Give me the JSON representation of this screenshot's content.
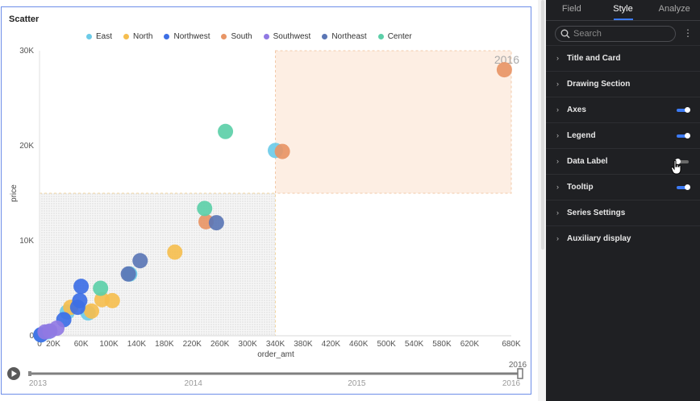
{
  "chart": {
    "title": "Scatter"
  },
  "colors": {
    "East": "#6ccbe8",
    "North": "#f5be4f",
    "Northwest": "#3d6fe5",
    "South": "#e89566",
    "Southwest": "#9079e3",
    "Northeast": "#5b76b5",
    "Center": "#5ccfa8"
  },
  "chart_data": {
    "type": "scatter",
    "title": "Scatter",
    "xlabel": "order_amt",
    "ylabel": "price",
    "xlim": [
      0,
      680000
    ],
    "ylim": [
      0,
      30000
    ],
    "x_ticks": [
      "0",
      "20K",
      "60K",
      "100K",
      "140K",
      "180K",
      "220K",
      "260K",
      "300K",
      "340K",
      "380K",
      "420K",
      "460K",
      "500K",
      "540K",
      "580K",
      "620K",
      "680K"
    ],
    "x_tick_values": [
      0,
      20000,
      60000,
      100000,
      140000,
      180000,
      220000,
      260000,
      300000,
      340000,
      380000,
      420000,
      460000,
      500000,
      540000,
      580000,
      620000,
      680000
    ],
    "y_ticks": [
      "0",
      "10K",
      "20K",
      "30K"
    ],
    "y_tick_values": [
      0,
      10000,
      20000,
      30000
    ],
    "legend_placement": "top",
    "grid": false,
    "watermark": "2016",
    "series": [
      {
        "name": "East",
        "points": [
          [
            2000,
            100
          ],
          [
            12000,
            400
          ],
          [
            40000,
            2500
          ],
          [
            70000,
            2400
          ],
          [
            130000,
            6500
          ],
          [
            340000,
            19500
          ]
        ]
      },
      {
        "name": "North",
        "points": [
          [
            45000,
            3000
          ],
          [
            75000,
            2600
          ],
          [
            90000,
            3800
          ],
          [
            105000,
            3700
          ],
          [
            195000,
            8800
          ]
        ]
      },
      {
        "name": "Northwest",
        "points": [
          [
            2000,
            100
          ],
          [
            35000,
            1700
          ],
          [
            55000,
            3000
          ],
          [
            60000,
            5200
          ],
          [
            58000,
            3700
          ]
        ]
      },
      {
        "name": "South",
        "points": [
          [
            240000,
            12000
          ],
          [
            350000,
            19400
          ],
          [
            670000,
            28000
          ]
        ]
      },
      {
        "name": "Southwest",
        "points": [
          [
            8000,
            400
          ],
          [
            15000,
            500
          ],
          [
            25000,
            800
          ]
        ]
      },
      {
        "name": "Northeast",
        "points": [
          [
            128000,
            6500
          ],
          [
            145000,
            7900
          ],
          [
            255000,
            11900
          ]
        ]
      },
      {
        "name": "Center",
        "points": [
          [
            88000,
            5000
          ],
          [
            238000,
            13400
          ],
          [
            268000,
            21500
          ]
        ]
      }
    ]
  },
  "timeline": {
    "years": [
      "2013",
      "2014",
      "2015",
      "2016"
    ],
    "current": "2016",
    "progress": 1.0
  },
  "panel": {
    "tabs": [
      "Field",
      "Style",
      "Analyze"
    ],
    "active_tab": "Style",
    "search_placeholder": "Search",
    "sections": [
      {
        "label": "Title and Card",
        "toggle": null
      },
      {
        "label": "Drawing Section",
        "toggle": null
      },
      {
        "label": "Axes",
        "toggle": "on"
      },
      {
        "label": "Legend",
        "toggle": "on"
      },
      {
        "label": "Data Label",
        "toggle": "off"
      },
      {
        "label": "Tooltip",
        "toggle": "on"
      },
      {
        "label": "Series Settings",
        "toggle": null
      },
      {
        "label": "Auxiliary display",
        "toggle": null
      }
    ]
  }
}
